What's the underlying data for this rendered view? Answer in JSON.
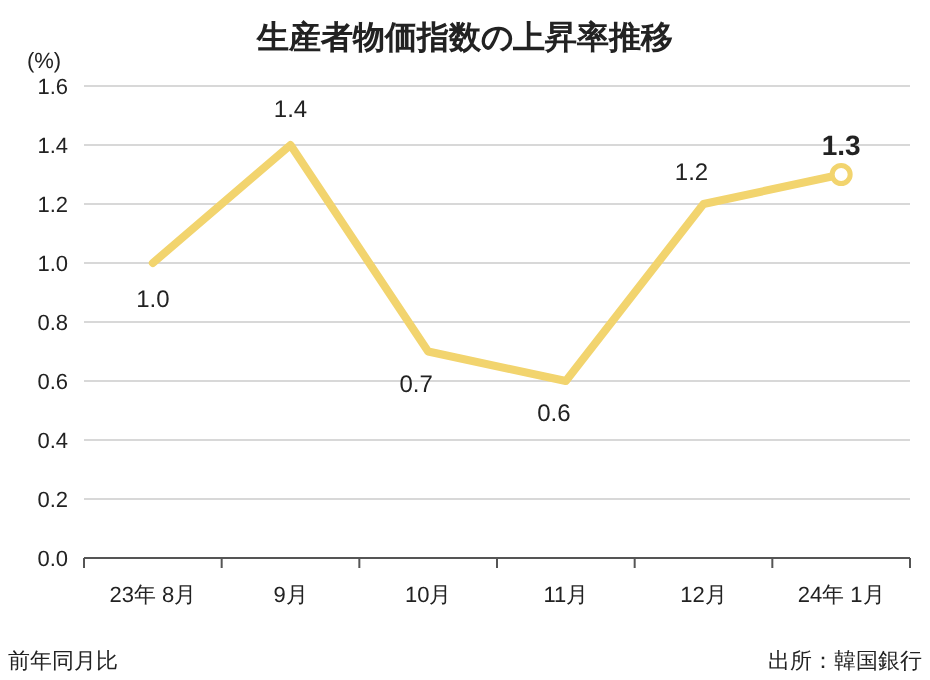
{
  "chart_data": {
    "type": "line",
    "title": "生産者物価指数の上昇率推移",
    "ylabel": "(%)",
    "categories": [
      "23年 8月",
      "9月",
      "10月",
      "11月",
      "12月",
      "24年 1月"
    ],
    "series": [
      {
        "color": "#f2d46e",
        "values": [
          1.0,
          1.4,
          0.7,
          0.6,
          1.2,
          1.3
        ],
        "value_labels": [
          "1.0",
          "1.4",
          "0.7",
          "0.6",
          "1.2",
          "1.3"
        ]
      },
      {
        "type": "scatter",
        "x": [
          "24年 1月"
        ],
        "color": "#f2d46e",
        "values": [
          1.3
        ],
        "marker": "circle"
      }
    ],
    "marker": "none",
    "ylim": [
      0,
      1.6
    ],
    "yticks": [
      {
        "value": 0,
        "label": "0.0"
      },
      0.2,
      0.4,
      0.6,
      0.8,
      {
        "value": 1,
        "label": "1.0"
      },
      1.2,
      1.4,
      1.6
    ],
    "grid": "y",
    "annotations": [
      "前年同月比",
      "出所：韓国銀行"
    ]
  }
}
